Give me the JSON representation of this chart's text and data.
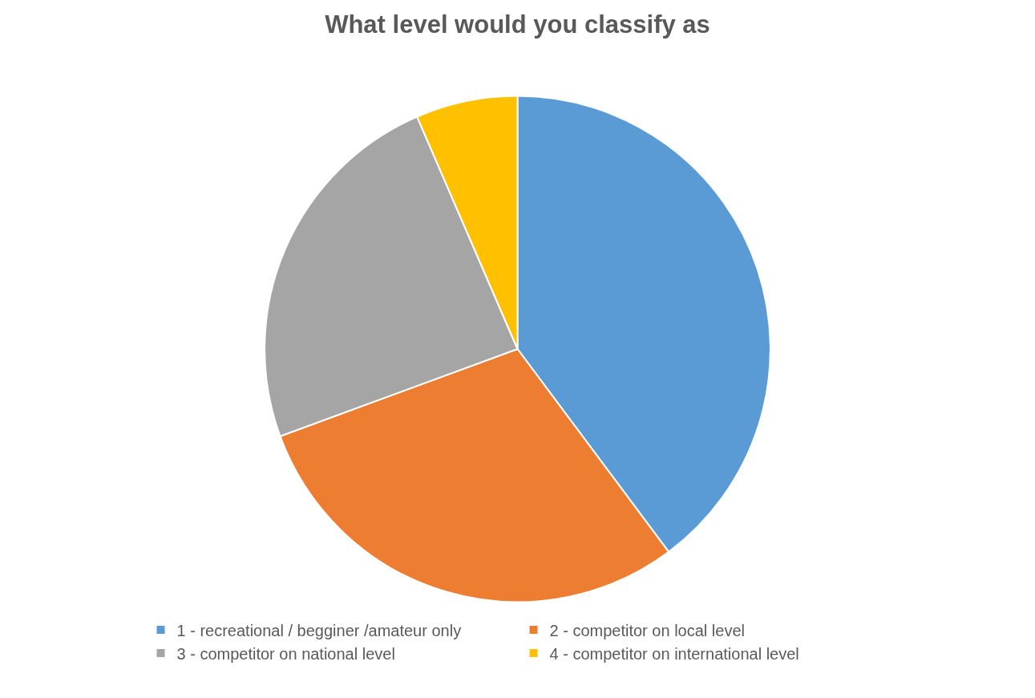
{
  "chart_data": {
    "type": "pie",
    "title": "What level would you classify as",
    "categories": [
      "1 - recreational / begginer /amateur only",
      "2 - competitor on local level",
      "3 - competitor on national level",
      "4 - competitor on international level"
    ],
    "values": [
      39.8,
      29.6,
      24.1,
      6.5
    ],
    "colors": [
      "#5b9bd5",
      "#ed7d31",
      "#a5a5a5",
      "#ffc000"
    ],
    "legend": "bottom"
  }
}
